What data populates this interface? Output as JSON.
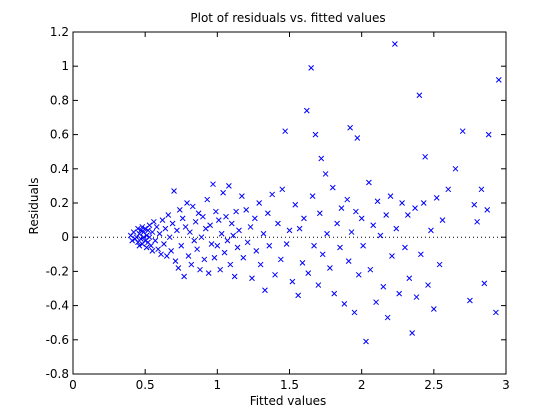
{
  "chart_data": {
    "type": "scatter",
    "title": "Plot of residuals vs. fitted values",
    "xlabel": "Fitted values",
    "ylabel": "Residuals",
    "xlim": [
      0,
      3
    ],
    "ylim": [
      -0.8,
      1.2
    ],
    "xticks": [
      "0",
      "0.5",
      "1",
      "1.5",
      "2",
      "2.5",
      "3"
    ],
    "yticks": [
      "-0.8",
      "-0.6",
      "-0.4",
      "-0.2",
      "0",
      "0.2",
      "0.4",
      "0.6",
      "0.8",
      "1",
      "1.2"
    ],
    "grid": false,
    "legend": "none",
    "marker": "x",
    "marker_color": "#0000ff",
    "reference_line": {
      "y": 0,
      "style": "dotted",
      "color": "#000000"
    },
    "series": [
      {
        "points": [
          [
            0.4,
            0.01
          ],
          [
            0.41,
            -0.02
          ],
          [
            0.42,
            0.03
          ],
          [
            0.43,
            -0.01
          ],
          [
            0.44,
            0.0
          ],
          [
            0.45,
            0.05
          ],
          [
            0.45,
            -0.03
          ],
          [
            0.46,
            0.02
          ],
          [
            0.46,
            -0.05
          ],
          [
            0.47,
            0.04
          ],
          [
            0.47,
            -0.01
          ],
          [
            0.48,
            0.06
          ],
          [
            0.48,
            -0.04
          ],
          [
            0.49,
            0.03
          ],
          [
            0.49,
            0.0
          ],
          [
            0.5,
            -0.02
          ],
          [
            0.5,
            0.05
          ],
          [
            0.51,
            0.01
          ],
          [
            0.51,
            -0.06
          ],
          [
            0.52,
            0.04
          ],
          [
            0.52,
            -0.03
          ],
          [
            0.53,
            0.07
          ],
          [
            0.53,
            0.0
          ],
          [
            0.54,
            -0.05
          ],
          [
            0.55,
            0.03
          ],
          [
            0.55,
            -0.08
          ],
          [
            0.56,
            0.09
          ],
          [
            0.57,
            -0.02
          ],
          [
            0.58,
            0.06
          ],
          [
            0.59,
            -0.07
          ],
          [
            0.6,
            0.02
          ],
          [
            0.61,
            -0.1
          ],
          [
            0.62,
            0.1
          ],
          [
            0.63,
            -0.04
          ],
          [
            0.64,
            0.05
          ],
          [
            0.65,
            -0.11
          ],
          [
            0.66,
            0.13
          ],
          [
            0.67,
            0.0
          ],
          [
            0.68,
            -0.08
          ],
          [
            0.69,
            0.08
          ],
          [
            0.7,
            0.27
          ],
          [
            0.71,
            -0.14
          ],
          [
            0.72,
            0.04
          ],
          [
            0.73,
            -0.18
          ],
          [
            0.74,
            0.16
          ],
          [
            0.75,
            -0.05
          ],
          [
            0.76,
            0.11
          ],
          [
            0.77,
            -0.23
          ],
          [
            0.78,
            0.06
          ],
          [
            0.79,
            0.2
          ],
          [
            0.8,
            -0.11
          ],
          [
            0.81,
            0.03
          ],
          [
            0.82,
            -0.16
          ],
          [
            0.83,
            0.18
          ],
          [
            0.84,
            -0.02
          ],
          [
            0.85,
            0.09
          ],
          [
            0.86,
            -0.07
          ],
          [
            0.87,
            0.14
          ],
          [
            0.88,
            -0.19
          ],
          [
            0.89,
            0.0
          ],
          [
            0.9,
            0.12
          ],
          [
            0.91,
            -0.13
          ],
          [
            0.92,
            0.05
          ],
          [
            0.93,
            0.22
          ],
          [
            0.94,
            -0.21
          ],
          [
            0.95,
            0.07
          ],
          [
            0.96,
            -0.04
          ],
          [
            0.97,
            0.31
          ],
          [
            0.98,
            -0.12
          ],
          [
            0.99,
            0.15
          ],
          [
            1.0,
            -0.05
          ],
          [
            1.01,
            0.1
          ],
          [
            1.02,
            -0.19
          ],
          [
            1.03,
            0.02
          ],
          [
            1.04,
            0.26
          ],
          [
            1.05,
            -0.09
          ],
          [
            1.06,
            0.12
          ],
          [
            1.07,
            -0.02
          ],
          [
            1.08,
            0.3
          ],
          [
            1.09,
            -0.16
          ],
          [
            1.1,
            0.08
          ],
          [
            1.11,
            0.01
          ],
          [
            1.12,
            -0.23
          ],
          [
            1.13,
            0.15
          ],
          [
            1.14,
            -0.06
          ],
          [
            1.15,
            0.04
          ],
          [
            1.17,
            0.24
          ],
          [
            1.18,
            -0.12
          ],
          [
            1.2,
            0.16
          ],
          [
            1.21,
            -0.03
          ],
          [
            1.23,
            0.06
          ],
          [
            1.24,
            -0.24
          ],
          [
            1.26,
            0.11
          ],
          [
            1.27,
            -0.08
          ],
          [
            1.29,
            0.2
          ],
          [
            1.3,
            -0.16
          ],
          [
            1.32,
            0.02
          ],
          [
            1.33,
            -0.31
          ],
          [
            1.35,
            0.14
          ],
          [
            1.36,
            -0.05
          ],
          [
            1.38,
            0.25
          ],
          [
            1.4,
            -0.22
          ],
          [
            1.42,
            0.08
          ],
          [
            1.44,
            -0.13
          ],
          [
            1.45,
            0.28
          ],
          [
            1.47,
            0.62
          ],
          [
            1.48,
            -0.04
          ],
          [
            1.5,
            0.04
          ],
          [
            1.52,
            -0.26
          ],
          [
            1.54,
            0.19
          ],
          [
            1.56,
            -0.34
          ],
          [
            1.57,
            0.05
          ],
          [
            1.59,
            -0.15
          ],
          [
            1.6,
            0.11
          ],
          [
            1.62,
            0.74
          ],
          [
            1.63,
            -0.21
          ],
          [
            1.65,
            0.99
          ],
          [
            1.66,
            0.24
          ],
          [
            1.67,
            -0.05
          ],
          [
            1.68,
            0.6
          ],
          [
            1.7,
            -0.28
          ],
          [
            1.71,
            0.14
          ],
          [
            1.72,
            0.46
          ],
          [
            1.73,
            -0.1
          ],
          [
            1.75,
            0.37
          ],
          [
            1.76,
            0.02
          ],
          [
            1.78,
            -0.18
          ],
          [
            1.8,
            0.29
          ],
          [
            1.81,
            -0.33
          ],
          [
            1.83,
            0.08
          ],
          [
            1.85,
            -0.06
          ],
          [
            1.86,
            0.17
          ],
          [
            1.88,
            -0.39
          ],
          [
            1.9,
            0.22
          ],
          [
            1.91,
            -0.14
          ],
          [
            1.92,
            0.64
          ],
          [
            1.93,
            0.03
          ],
          [
            1.95,
            -0.44
          ],
          [
            1.96,
            0.15
          ],
          [
            1.97,
            0.58
          ],
          [
            1.98,
            -0.22
          ],
          [
            2.0,
            0.11
          ],
          [
            2.01,
            -0.05
          ],
          [
            2.03,
            -0.61
          ],
          [
            2.05,
            0.32
          ],
          [
            2.06,
            -0.19
          ],
          [
            2.08,
            0.07
          ],
          [
            2.1,
            -0.38
          ],
          [
            2.11,
            0.21
          ],
          [
            2.13,
            0.01
          ],
          [
            2.15,
            -0.29
          ],
          [
            2.17,
            0.13
          ],
          [
            2.18,
            -0.47
          ],
          [
            2.2,
            0.24
          ],
          [
            2.21,
            -0.11
          ],
          [
            2.23,
            1.13
          ],
          [
            2.24,
            0.05
          ],
          [
            2.26,
            -0.33
          ],
          [
            2.28,
            0.2
          ],
          [
            2.3,
            -0.06
          ],
          [
            2.32,
            0.13
          ],
          [
            2.33,
            -0.24
          ],
          [
            2.35,
            -0.56
          ],
          [
            2.37,
            0.17
          ],
          [
            2.38,
            -0.35
          ],
          [
            2.4,
            0.83
          ],
          [
            2.41,
            -0.1
          ],
          [
            2.43,
            0.2
          ],
          [
            2.44,
            0.47
          ],
          [
            2.46,
            -0.28
          ],
          [
            2.48,
            0.04
          ],
          [
            2.5,
            -0.42
          ],
          [
            2.52,
            0.23
          ],
          [
            2.54,
            -0.16
          ],
          [
            2.56,
            0.1
          ],
          [
            2.6,
            0.28
          ],
          [
            2.65,
            0.4
          ],
          [
            2.7,
            0.62
          ],
          [
            2.75,
            -0.37
          ],
          [
            2.78,
            0.19
          ],
          [
            2.8,
            0.09
          ],
          [
            2.83,
            0.28
          ],
          [
            2.85,
            -0.27
          ],
          [
            2.87,
            0.16
          ],
          [
            2.88,
            0.6
          ],
          [
            2.93,
            -0.44
          ],
          [
            2.95,
            0.92
          ]
        ]
      }
    ]
  }
}
